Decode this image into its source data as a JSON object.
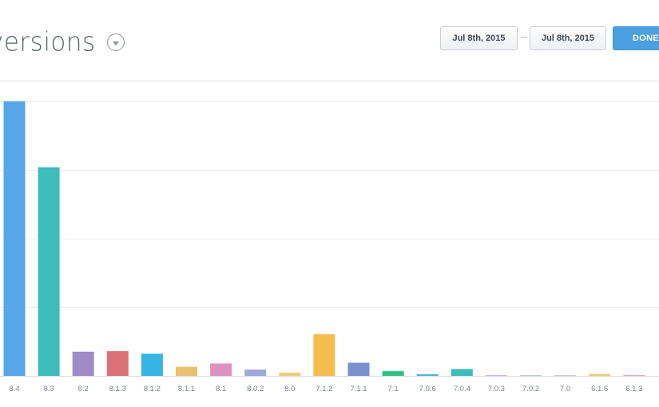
{
  "header": {
    "title": "versions",
    "date_start": "Jul 8th, 2015",
    "date_separator": "–",
    "date_end": "Jul 8th, 2015",
    "done_label": "DONE"
  },
  "chart_data": {
    "type": "bar",
    "ylim": [
      0,
      100
    ],
    "grid": true,
    "categories": [
      "8.4",
      "8.3",
      "8.2",
      "8.1.3",
      "8.1.2",
      "8.1.1",
      "8.1",
      "8.0.2",
      "8.0",
      "7.1.2",
      "7.1.1",
      "7.1",
      "7.0.6",
      "7.0.4",
      "7.0.3",
      "7.0.2",
      "7.0",
      "6.1.6",
      "6.1.3"
    ],
    "values": [
      100,
      76,
      8.8,
      9.0,
      8.1,
      3.3,
      4.5,
      2.3,
      1.2,
      15.2,
      4.8,
      1.7,
      0.6,
      2.5,
      0.3,
      0.1,
      0.1,
      0.7,
      0.3
    ],
    "colors": [
      "#56a6e9",
      "#3dbcbc",
      "#a08bc8",
      "#dc7178",
      "#36b4e3",
      "#e8c16e",
      "#dc92bc",
      "#9ea9d9",
      "#e9cf77",
      "#f4bb4d",
      "#7a8fcd",
      "#2fbf82",
      "#4db7d8",
      "#3dbcbc",
      "#c7b3dc",
      "#c4cad1",
      "#c4cad1",
      "#e9cf77",
      "#e4a6c8"
    ]
  }
}
